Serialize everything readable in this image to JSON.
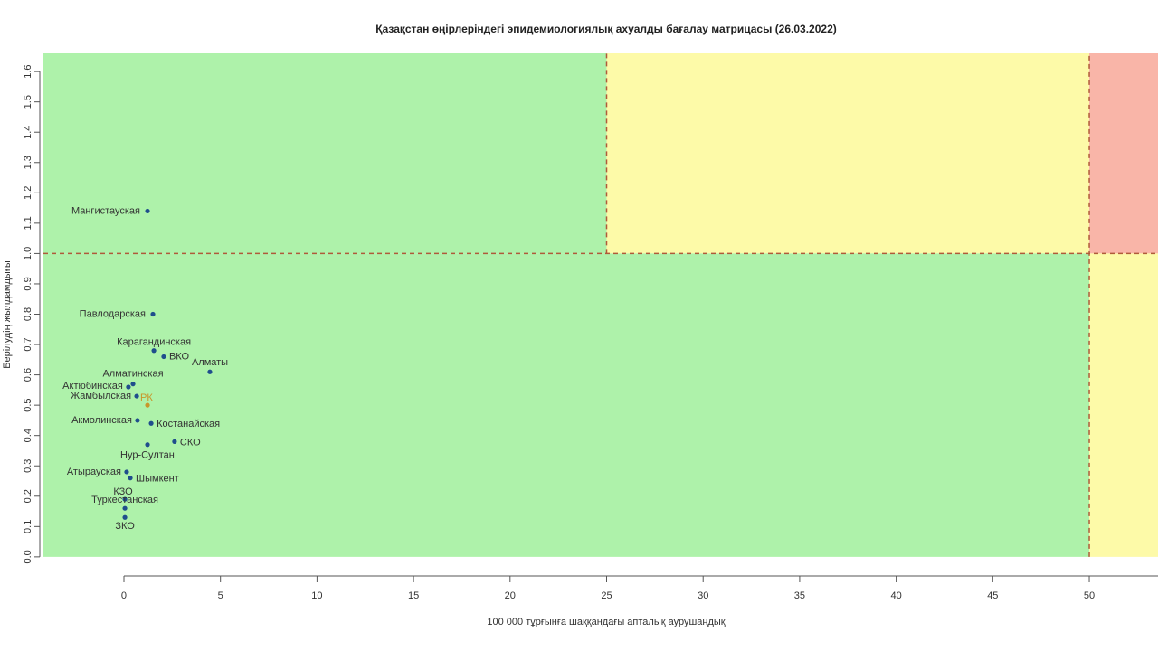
{
  "chart_data": {
    "type": "scatter",
    "title": "Қазақстан өңірлеріндегі эпидемиологиялық ахуалды бағалау матрицасы  (26.03.2022)",
    "x_label": "100 000 тұрғынға шаққандағы апталық аурушаңдық",
    "y_label": "Берілудің жылдамдығы",
    "xlim": [
      -4.17,
      53.56
    ],
    "ylim": [
      -0.06,
      1.66
    ],
    "xticks": [
      0,
      5,
      10,
      15,
      20,
      25,
      30,
      35,
      40,
      45,
      50
    ],
    "yticks": [
      {
        "value": 0,
        "label": "0.0"
      },
      0.1,
      0.2,
      0.3,
      0.4,
      0.5,
      0.6,
      0.7,
      0.8,
      0.9,
      {
        "value": 1,
        "label": "1.0"
      },
      1.1,
      1.2,
      1.3,
      1.4,
      1.5,
      1.6
    ],
    "zones": [
      {
        "x": [
          -4.17,
          25
        ],
        "y": [
          1,
          1.66
        ],
        "color": "#aef2aa"
      },
      {
        "x": [
          25,
          50
        ],
        "y": [
          1,
          1.66
        ],
        "color": "#fdfaa8"
      },
      {
        "x": [
          50,
          53.56
        ],
        "y": [
          1,
          1.66
        ],
        "color": "#f9b5a8"
      },
      {
        "x": [
          -4.17,
          50
        ],
        "y": [
          0,
          1
        ],
        "color": "#aef2aa"
      },
      {
        "x": [
          50,
          53.56
        ],
        "y": [
          0,
          1
        ],
        "color": "#fdfaa8"
      }
    ],
    "thresholds": {
      "x": [
        25,
        50
      ],
      "y": [
        1
      ]
    },
    "threshold_color": "#b05a3a",
    "point_color": "#1f4e8c",
    "highlight_color": "#c8962a",
    "labels": [
      "Мангистауская",
      "Павлодарская",
      "Карагандинская",
      "ВКО",
      "Алматы",
      "Алматинская",
      "Актюбинская",
      "Жамбылская",
      "РК",
      "Акмолинская",
      "Костанайская",
      "СКО",
      "Нур-Султан",
      "Атырауская",
      "Шымкент",
      "КЗО",
      "Туркестанская",
      "ЗКО"
    ],
    "x": [
      1.22,
      1.5,
      1.55,
      2.06,
      4.45,
      0.47,
      0.23,
      0.66,
      1.22,
      0.7,
      1.41,
      2.62,
      1.22,
      0.14,
      0.33,
      0.05,
      0.05,
      0.05
    ],
    "values": [
      1.14,
      0.8,
      0.68,
      0.66,
      0.61,
      0.57,
      0.56,
      0.53,
      0.5,
      0.45,
      0.44,
      0.38,
      0.37,
      0.28,
      0.26,
      0.19,
      0.16,
      0.13
    ],
    "highlight": "РК"
  }
}
